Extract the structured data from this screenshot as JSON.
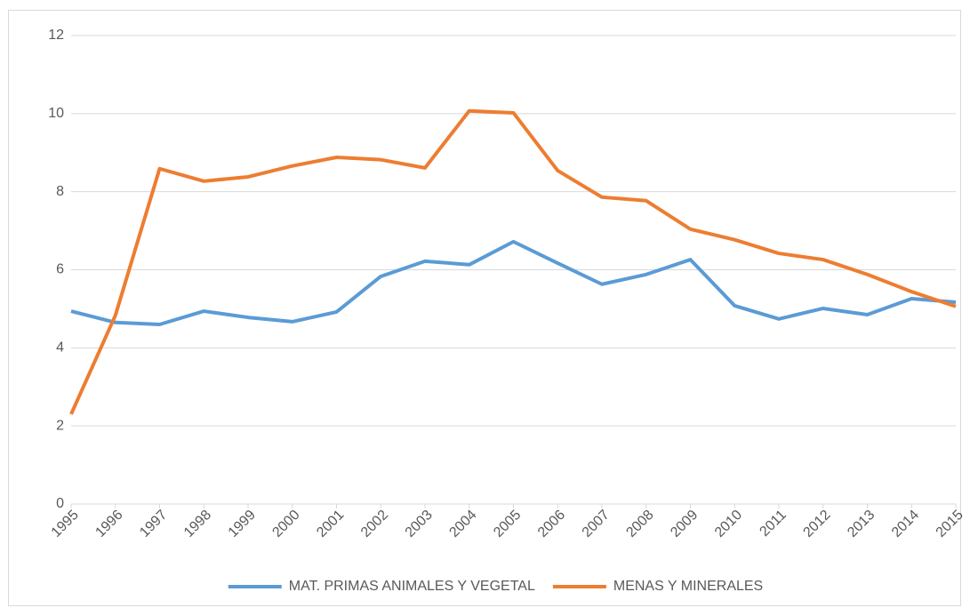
{
  "chart_data": {
    "type": "line",
    "x": [
      1995,
      1996,
      1997,
      1998,
      1999,
      2000,
      2001,
      2002,
      2003,
      2004,
      2005,
      2006,
      2007,
      2008,
      2009,
      2010,
      2011,
      2012,
      2013,
      2014,
      2015
    ],
    "xlim": [
      1995,
      2015
    ],
    "xticks": [
      1995,
      1996,
      1997,
      1998,
      1999,
      2000,
      2001,
      2002,
      2003,
      2004,
      2005,
      2006,
      2007,
      2008,
      2009,
      2010,
      2011,
      2012,
      2013,
      2014,
      2015
    ],
    "ylim": [
      0,
      12
    ],
    "yticks": [
      0,
      2,
      4,
      6,
      8,
      10,
      12
    ],
    "grid": true,
    "legend": "bottom",
    "series": [
      {
        "name": "MAT. PRIMAS ANIMALES Y VEGETAL",
        "color": "#5b9bd5",
        "values": [
          4.94,
          4.65,
          4.6,
          4.94,
          4.78,
          4.67,
          4.92,
          5.83,
          6.22,
          6.13,
          6.72,
          6.17,
          5.63,
          5.88,
          6.26,
          5.08,
          4.74,
          5.01,
          4.85,
          5.26,
          5.17
        ]
      },
      {
        "name": "MENAS Y MINERALES",
        "color": "#ed7d31",
        "values": [
          2.3,
          4.83,
          8.59,
          8.27,
          8.38,
          8.66,
          8.88,
          8.82,
          8.61,
          10.07,
          10.02,
          8.54,
          7.86,
          7.77,
          7.04,
          6.77,
          6.42,
          6.26,
          5.88,
          5.44,
          5.06
        ]
      }
    ]
  }
}
